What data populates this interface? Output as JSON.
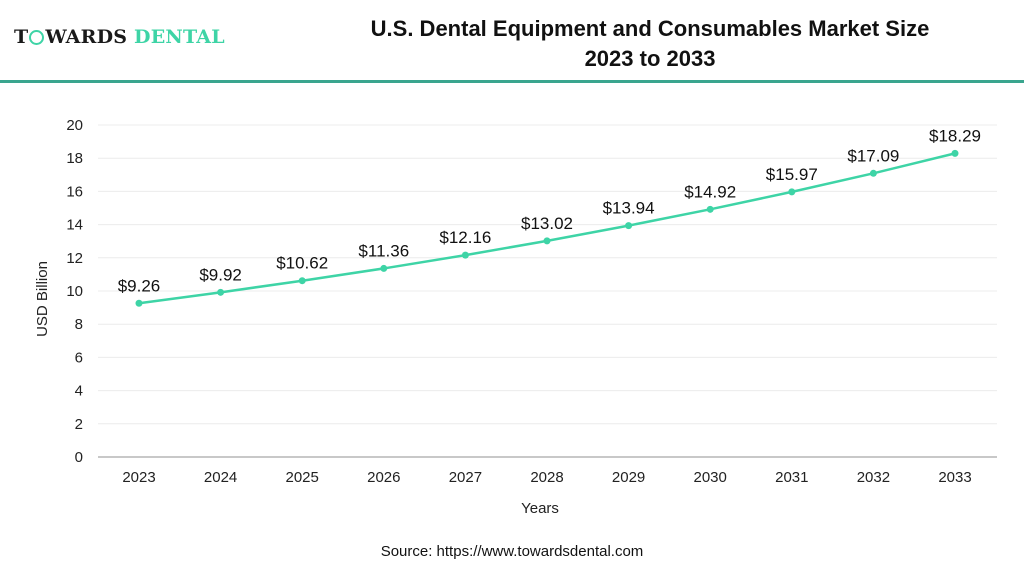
{
  "header": {
    "logo_left": "T",
    "logo_mid": "WARDS",
    "logo_accent": "DENTAL",
    "title_line1": "U.S. Dental Equipment and Consumables Market Size",
    "title_line2": "2023 to 2033"
  },
  "colors": {
    "line": "#3ed4a6",
    "accent": "#3ed4a6",
    "rule": "#3aa58e"
  },
  "source": "Source: https://www.towardsdental.com",
  "chart_data": {
    "type": "line",
    "title": "U.S. Dental Equipment and Consumables Market Size 2023 to 2033",
    "xlabel": "Years",
    "ylabel": "USD Billion",
    "ylim": [
      0,
      20
    ],
    "yticks": [
      0,
      2,
      4,
      6,
      8,
      10,
      12,
      14,
      16,
      18,
      20
    ],
    "grid": true,
    "legend": "none",
    "categories": [
      "2023",
      "2024",
      "2025",
      "2026",
      "2027",
      "2028",
      "2029",
      "2030",
      "2031",
      "2032",
      "2033"
    ],
    "series": [
      {
        "name": "Market Size",
        "values": [
          9.26,
          9.92,
          10.62,
          11.36,
          12.16,
          13.02,
          13.94,
          14.92,
          15.97,
          17.09,
          18.29
        ],
        "labels": [
          "$9.26",
          "$9.92",
          "$10.62",
          "$11.36",
          "$12.16",
          "$13.02",
          "$13.94",
          "$14.92",
          "$15.97",
          "$17.09",
          "$18.29"
        ]
      }
    ]
  }
}
